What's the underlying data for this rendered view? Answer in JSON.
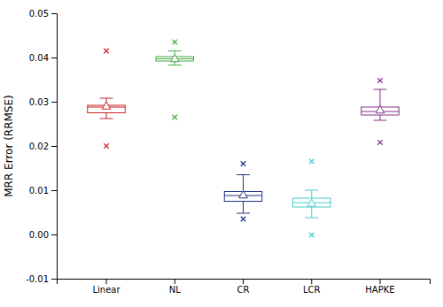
{
  "chart_data": {
    "type": "box",
    "categories": [
      "Linear",
      "NL",
      "CR",
      "LCR",
      "HAPKE"
    ],
    "colors": [
      "#cc2222",
      "#44aa44",
      "#223388",
      "#44cccc",
      "#883388"
    ],
    "boxes": [
      {
        "q1": 0.0275,
        "median": 0.0288,
        "q3": 0.0292,
        "mean": 0.0289,
        "whisker_low": 0.0262,
        "whisker_high": 0.0308,
        "fliers_low": [
          0.02
        ],
        "fliers_high": [
          0.0415
        ]
      },
      {
        "q1": 0.0392,
        "median": 0.0397,
        "q3": 0.0402,
        "mean": 0.0396,
        "whisker_low": 0.0383,
        "whisker_high": 0.0415,
        "fliers_low": [
          0.0265
        ],
        "fliers_high": [
          0.0435
        ]
      },
      {
        "q1": 0.0075,
        "median": 0.0088,
        "q3": 0.0097,
        "mean": 0.0088,
        "whisker_low": 0.0048,
        "whisker_high": 0.0135,
        "fliers_low": [
          0.0035
        ],
        "fliers_high": [
          0.016
        ]
      },
      {
        "q1": 0.0062,
        "median": 0.0072,
        "q3": 0.0082,
        "mean": 0.0069,
        "whisker_low": 0.0038,
        "whisker_high": 0.01,
        "fliers_low": [
          -0.0001
        ],
        "fliers_high": [
          0.0165
        ]
      },
      {
        "q1": 0.027,
        "median": 0.0278,
        "q3": 0.0288,
        "mean": 0.028,
        "whisker_low": 0.0258,
        "whisker_high": 0.0328,
        "fliers_low": [
          0.0208
        ],
        "fliers_high": [
          0.0348
        ]
      }
    ],
    "ylabel": "MRR Error (RRMSE)",
    "ylim": [
      -0.01,
      0.05
    ],
    "yticks": [
      -0.01,
      {
        "value": 0,
        "label": "0.00"
      },
      0.01,
      0.02,
      0.03,
      0.04,
      0.05
    ]
  }
}
